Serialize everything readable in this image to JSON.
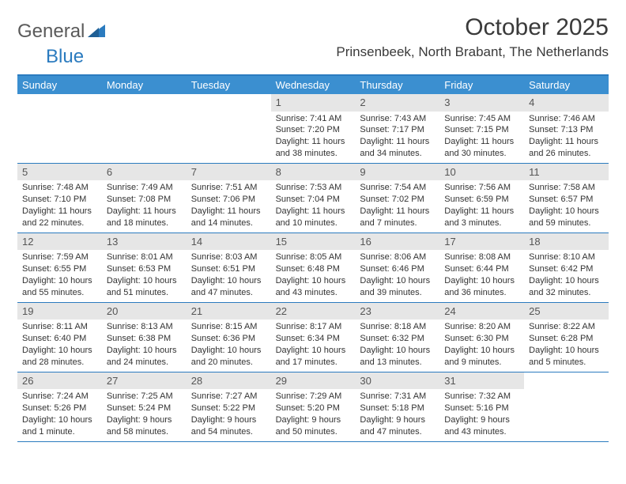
{
  "brand": {
    "general": "General",
    "blue": "Blue"
  },
  "title": "October 2025",
  "subtitle": "Prinsenbeek, North Brabant, The Netherlands",
  "colors": {
    "header_bg": "#3b8fd0",
    "header_text": "#ffffff",
    "border": "#2b7bbf",
    "daynum_bg": "#e6e6e6",
    "text": "#333333",
    "title_color": "#3a3a3a",
    "logo_gray": "#5a5a5a",
    "logo_blue": "#2b7bbf"
  },
  "dayNames": [
    "Sunday",
    "Monday",
    "Tuesday",
    "Wednesday",
    "Thursday",
    "Friday",
    "Saturday"
  ],
  "weeks": [
    [
      null,
      null,
      null,
      {
        "n": "1",
        "sr": "7:41 AM",
        "ss": "7:20 PM",
        "dl": "11 hours and 38 minutes."
      },
      {
        "n": "2",
        "sr": "7:43 AM",
        "ss": "7:17 PM",
        "dl": "11 hours and 34 minutes."
      },
      {
        "n": "3",
        "sr": "7:45 AM",
        "ss": "7:15 PM",
        "dl": "11 hours and 30 minutes."
      },
      {
        "n": "4",
        "sr": "7:46 AM",
        "ss": "7:13 PM",
        "dl": "11 hours and 26 minutes."
      }
    ],
    [
      {
        "n": "5",
        "sr": "7:48 AM",
        "ss": "7:10 PM",
        "dl": "11 hours and 22 minutes."
      },
      {
        "n": "6",
        "sr": "7:49 AM",
        "ss": "7:08 PM",
        "dl": "11 hours and 18 minutes."
      },
      {
        "n": "7",
        "sr": "7:51 AM",
        "ss": "7:06 PM",
        "dl": "11 hours and 14 minutes."
      },
      {
        "n": "8",
        "sr": "7:53 AM",
        "ss": "7:04 PM",
        "dl": "11 hours and 10 minutes."
      },
      {
        "n": "9",
        "sr": "7:54 AM",
        "ss": "7:02 PM",
        "dl": "11 hours and 7 minutes."
      },
      {
        "n": "10",
        "sr": "7:56 AM",
        "ss": "6:59 PM",
        "dl": "11 hours and 3 minutes."
      },
      {
        "n": "11",
        "sr": "7:58 AM",
        "ss": "6:57 PM",
        "dl": "10 hours and 59 minutes."
      }
    ],
    [
      {
        "n": "12",
        "sr": "7:59 AM",
        "ss": "6:55 PM",
        "dl": "10 hours and 55 minutes."
      },
      {
        "n": "13",
        "sr": "8:01 AM",
        "ss": "6:53 PM",
        "dl": "10 hours and 51 minutes."
      },
      {
        "n": "14",
        "sr": "8:03 AM",
        "ss": "6:51 PM",
        "dl": "10 hours and 47 minutes."
      },
      {
        "n": "15",
        "sr": "8:05 AM",
        "ss": "6:48 PM",
        "dl": "10 hours and 43 minutes."
      },
      {
        "n": "16",
        "sr": "8:06 AM",
        "ss": "6:46 PM",
        "dl": "10 hours and 39 minutes."
      },
      {
        "n": "17",
        "sr": "8:08 AM",
        "ss": "6:44 PM",
        "dl": "10 hours and 36 minutes."
      },
      {
        "n": "18",
        "sr": "8:10 AM",
        "ss": "6:42 PM",
        "dl": "10 hours and 32 minutes."
      }
    ],
    [
      {
        "n": "19",
        "sr": "8:11 AM",
        "ss": "6:40 PM",
        "dl": "10 hours and 28 minutes."
      },
      {
        "n": "20",
        "sr": "8:13 AM",
        "ss": "6:38 PM",
        "dl": "10 hours and 24 minutes."
      },
      {
        "n": "21",
        "sr": "8:15 AM",
        "ss": "6:36 PM",
        "dl": "10 hours and 20 minutes."
      },
      {
        "n": "22",
        "sr": "8:17 AM",
        "ss": "6:34 PM",
        "dl": "10 hours and 17 minutes."
      },
      {
        "n": "23",
        "sr": "8:18 AM",
        "ss": "6:32 PM",
        "dl": "10 hours and 13 minutes."
      },
      {
        "n": "24",
        "sr": "8:20 AM",
        "ss": "6:30 PM",
        "dl": "10 hours and 9 minutes."
      },
      {
        "n": "25",
        "sr": "8:22 AM",
        "ss": "6:28 PM",
        "dl": "10 hours and 5 minutes."
      }
    ],
    [
      {
        "n": "26",
        "sr": "7:24 AM",
        "ss": "5:26 PM",
        "dl": "10 hours and 1 minute."
      },
      {
        "n": "27",
        "sr": "7:25 AM",
        "ss": "5:24 PM",
        "dl": "9 hours and 58 minutes."
      },
      {
        "n": "28",
        "sr": "7:27 AM",
        "ss": "5:22 PM",
        "dl": "9 hours and 54 minutes."
      },
      {
        "n": "29",
        "sr": "7:29 AM",
        "ss": "5:20 PM",
        "dl": "9 hours and 50 minutes."
      },
      {
        "n": "30",
        "sr": "7:31 AM",
        "ss": "5:18 PM",
        "dl": "9 hours and 47 minutes."
      },
      {
        "n": "31",
        "sr": "7:32 AM",
        "ss": "5:16 PM",
        "dl": "9 hours and 43 minutes."
      },
      null
    ]
  ],
  "labels": {
    "sunrise": "Sunrise: ",
    "sunset": "Sunset: ",
    "daylight": "Daylight: "
  }
}
